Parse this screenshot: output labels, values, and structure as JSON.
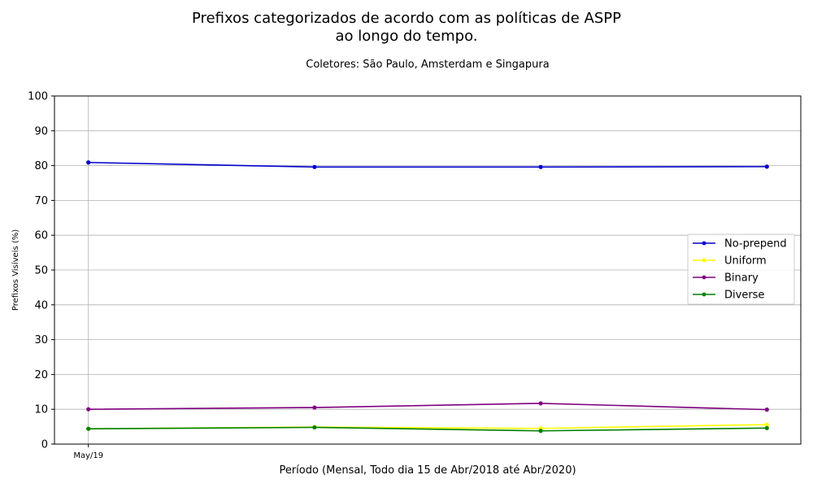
{
  "chart_data": {
    "type": "line",
    "title": "Prefixos categorizados de acordo com as políticas de ASPP",
    "title_line2": "ao longo do tempo.",
    "subtitle": "Coletores: São Paulo, Amsterdam e Singapura",
    "xlabel": "Período (Mensal, Todo dia 15 de Abr/2018 até Abr/2020)",
    "ylabel": "Prefixos Visíveis (%)",
    "x": [
      0,
      1,
      2,
      3
    ],
    "x_tick_labels": [
      {
        "x": 0,
        "label": "May/19"
      }
    ],
    "ylim": [
      0,
      100
    ],
    "xlim": [
      -0.15,
      3.15
    ],
    "yticks": [
      "0",
      "10",
      "20",
      "30",
      "40",
      "50",
      "60",
      "70",
      "80",
      "90",
      "100"
    ],
    "grid": true,
    "legend_position": "center-right",
    "series": [
      {
        "name": "No-prepend",
        "color": "#0000cc",
        "values": [
          80.9,
          79.6,
          79.6,
          79.7
        ]
      },
      {
        "name": "Uniform",
        "color": "#ffff00",
        "values": [
          4.4,
          4.9,
          4.5,
          5.6
        ]
      },
      {
        "name": "Binary",
        "color": "#800080",
        "values": [
          10.0,
          10.5,
          11.7,
          9.9
        ]
      },
      {
        "name": "Diverse",
        "color": "#008000",
        "values": [
          4.4,
          4.8,
          3.8,
          4.6
        ]
      }
    ]
  }
}
